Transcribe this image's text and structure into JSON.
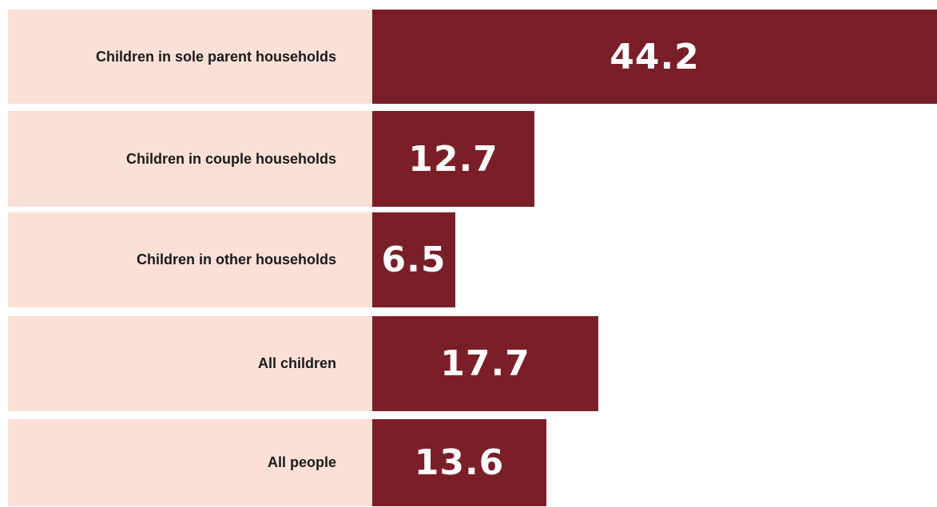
{
  "chart_data": {
    "type": "bar",
    "orientation": "horizontal",
    "categories": [
      "Children in sole parent households",
      "Children in couple households",
      "Children in other households",
      "All children",
      "All people"
    ],
    "values": [
      44.2,
      12.7,
      6.5,
      17.7,
      13.6
    ],
    "value_labels": [
      "44.2",
      "12.7",
      "6.5",
      "17.7",
      "13.6"
    ],
    "title": "",
    "xlabel": "",
    "ylabel": "",
    "xlim": [
      0,
      44.2
    ],
    "grid": false,
    "legend": "none"
  },
  "colors": {
    "bar": "#7a1f28",
    "label_background": "#fbe0d8",
    "label_text": "#1a1a1a",
    "value_text": "#ffffff"
  }
}
